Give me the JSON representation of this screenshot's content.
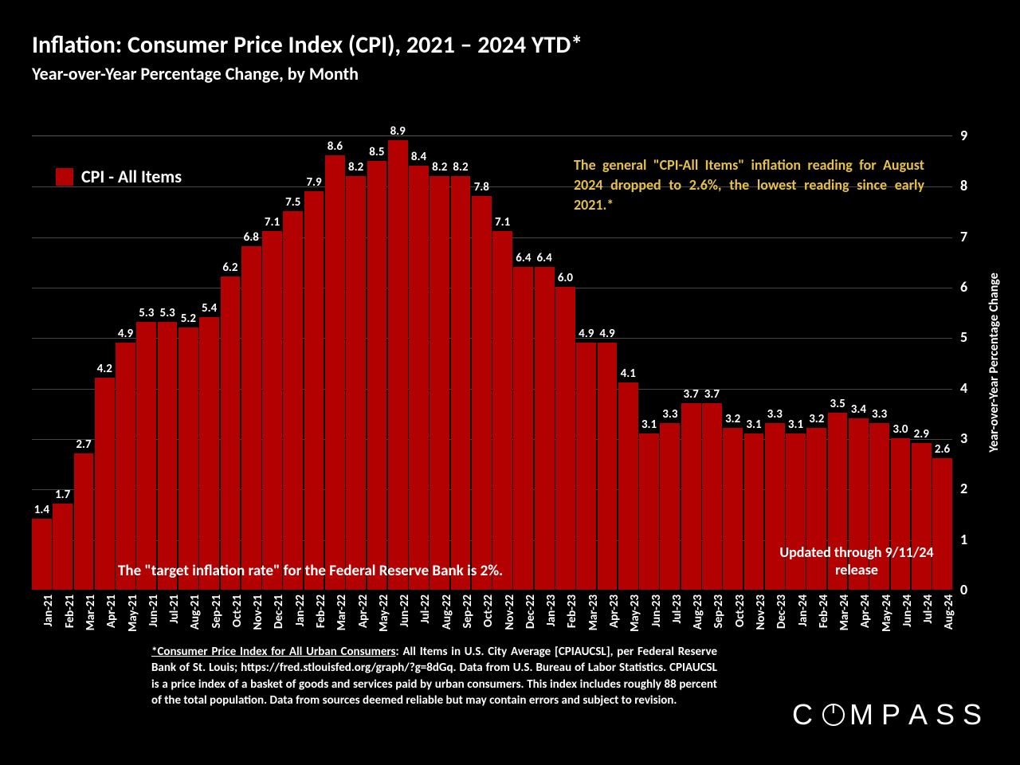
{
  "title": "Inflation: Consumer Price Index (CPI), 2021 – 2024 YTD*",
  "subtitle": "Year-over-Year Percentage Change, by Month",
  "legend_label": "CPI - All Items",
  "annotation_text": "The general \"CPI-All Items\" inflation reading for August 2024 dropped to 2.6%, the lowest reading since early 2021.*",
  "annotation_color": "#e6c048",
  "target_note": "The \"target inflation rate\" for the Federal Reserve Bank is 2%.",
  "updated_note": "Updated through 9/11/24 release",
  "footnote_lead": "*Consumer Price Index for All Urban Consumers",
  "footnote_rest": ": All Items in U.S. City Average [CPIAUCSL], per Federal Reserve Bank of St. Louis; https://fred.stlouisfed.org/graph/?g=8dGq. Data from U.S. Bureau of Labor Statistics. CPIAUCSL is a price index of a basket of goods and services paid by urban consumers. This index includes roughly 88 percent of the total population. Data from sources deemed reliable but may contain errors and subject to revision.",
  "logo_text": "COMPASS",
  "y_axis_title": "Year-over-Year Percentage Change",
  "chart": {
    "type": "bar",
    "bar_color": "#b30000",
    "legend_swatch_color": "#b30000",
    "background_color": "#000000",
    "grid_color": "#444444",
    "text_color": "#ffffff",
    "label_fontsize": 15,
    "title_fontsize": 30,
    "ylim": [
      0,
      9
    ],
    "ytick_step": 1,
    "yticks": [
      0,
      1,
      2,
      3,
      4,
      5,
      6,
      7,
      8,
      9
    ],
    "categories": [
      "Jan-21",
      "Feb-21",
      "Mar-21",
      "Apr-21",
      "May-21",
      "Jun-21",
      "Jul-21",
      "Aug-21",
      "Sep-21",
      "Oct-21",
      "Nov-21",
      "Dec-21",
      "Jan-22",
      "Feb-22",
      "Mar-22",
      "Apr-22",
      "May-22",
      "Jun-22",
      "Jul-22",
      "Aug-22",
      "Sep-22",
      "Oct-22",
      "Nov-22",
      "Dec-22",
      "Jan-23",
      "Feb-23",
      "Mar-23",
      "Apr-23",
      "May-23",
      "Jun-23",
      "Jul-23",
      "Aug-23",
      "Sep-23",
      "Oct-23",
      "Nov-23",
      "Dec-23",
      "Jan-24",
      "Feb-24",
      "Mar-24",
      "Apr-24",
      "May-24",
      "Jun-24",
      "Jul-24",
      "Aug-24"
    ],
    "values": [
      1.4,
      1.7,
      2.7,
      4.2,
      4.9,
      5.3,
      5.3,
      5.2,
      5.4,
      6.2,
      6.8,
      7.1,
      7.5,
      7.9,
      8.6,
      8.2,
      8.5,
      8.9,
      8.4,
      8.2,
      8.2,
      7.8,
      7.1,
      6.4,
      6.4,
      6.0,
      4.9,
      4.9,
      4.1,
      3.1,
      3.3,
      3.7,
      3.7,
      3.2,
      3.1,
      3.3,
      3.1,
      3.2,
      3.5,
      3.4,
      3.3,
      3.0,
      2.9,
      2.6
    ]
  }
}
